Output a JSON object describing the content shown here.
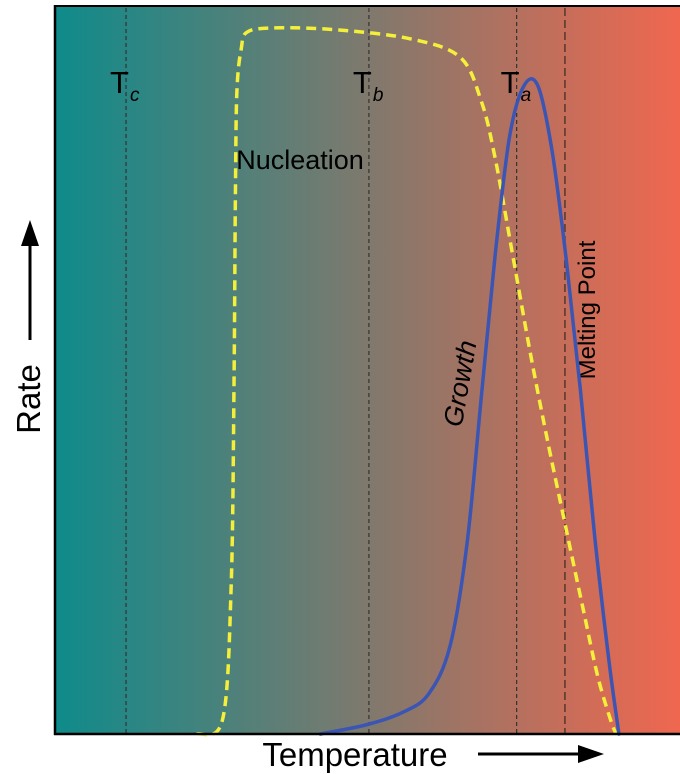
{
  "chart_data": {
    "type": "line",
    "xlabel": "Temperature",
    "ylabel": "Rate",
    "grid": false,
    "legend": "none",
    "background_gradient": {
      "from": "#0e8b8b",
      "to": "#f0674f"
    },
    "markers": [
      {
        "base": "T",
        "sub": "c"
      },
      {
        "base": "T",
        "sub": "b"
      },
      {
        "base": "T",
        "sub": "a"
      },
      {
        "label": "Melting Point"
      }
    ],
    "series": [
      {
        "name": "Nucleation",
        "color": "#f4ef3a",
        "style": "dashed",
        "points": [
          [
            100,
            0
          ],
          [
            118,
            2
          ],
          [
            124,
            20
          ],
          [
            126,
            48
          ],
          [
            127,
            74
          ],
          [
            128,
            88
          ],
          [
            131,
            94
          ],
          [
            136,
            96.5
          ],
          [
            160,
            97
          ],
          [
            200,
            96.7
          ],
          [
            250,
            95.5
          ],
          [
            285,
            93
          ],
          [
            300,
            87
          ],
          [
            310,
            79
          ],
          [
            322,
            66
          ],
          [
            334,
            53
          ],
          [
            346,
            41
          ],
          [
            360,
            28
          ],
          [
            372,
            17
          ],
          [
            382,
            8
          ],
          [
            391,
            2
          ],
          [
            395,
            0
          ]
        ]
      },
      {
        "name": "Growth",
        "color": "#3b55b5",
        "style": "solid",
        "points": [
          [
            187,
            0
          ],
          [
            220,
            1.3
          ],
          [
            245,
            3
          ],
          [
            263,
            5.5
          ],
          [
            278,
            12
          ],
          [
            290,
            26
          ],
          [
            300,
            46
          ],
          [
            310,
            66
          ],
          [
            320,
            82
          ],
          [
            330,
            89
          ],
          [
            340,
            89
          ],
          [
            350,
            80
          ],
          [
            360,
            65
          ],
          [
            370,
            47
          ],
          [
            380,
            27
          ],
          [
            390,
            10
          ],
          [
            397,
            0
          ]
        ]
      }
    ]
  }
}
